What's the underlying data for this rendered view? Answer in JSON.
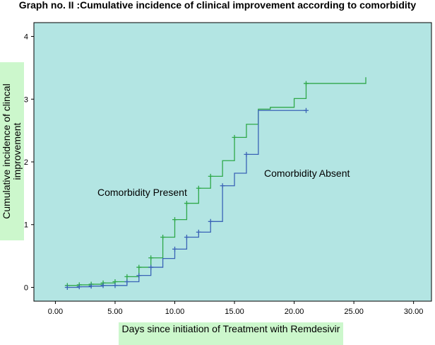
{
  "chart_data": {
    "type": "line",
    "step": true,
    "title": "Graph no. II :Cumulative incidence of clinical improvement according to comorbidity",
    "xlabel": "Days since initiation of Treatment with Remdesivir",
    "ylabel": "Cumulative incidence of clincal improvement",
    "xlim": [
      -1.8,
      31.5
    ],
    "ylim": [
      -0.22,
      4.22
    ],
    "x_ticks": [
      0,
      5,
      10,
      15,
      20,
      25,
      30
    ],
    "x_tick_labels": [
      "0.00",
      "5.00",
      "10.00",
      "15.00",
      "20.00",
      "25.00",
      "30.00"
    ],
    "y_ticks": [
      0,
      1,
      2,
      3,
      4
    ],
    "y_tick_labels": [
      "0",
      "1",
      "2",
      "3",
      "4"
    ],
    "grid": false,
    "plot_background": "#b3e5e3",
    "series": [
      {
        "name": "Comorbidity Present",
        "color": "#2fa84a",
        "x": [
          1,
          2,
          3,
          4,
          5,
          6,
          7,
          8,
          9,
          10,
          11,
          12,
          13,
          14,
          15,
          16,
          17,
          18,
          20,
          21,
          26
        ],
        "y": [
          0.03,
          0.04,
          0.05,
          0.07,
          0.09,
          0.17,
          0.32,
          0.47,
          0.8,
          1.08,
          1.34,
          1.58,
          1.77,
          2.02,
          2.39,
          2.6,
          2.84,
          2.87,
          3.01,
          3.25,
          3.35
        ],
        "censored_x": [
          1,
          2,
          3,
          4,
          5,
          6,
          7,
          8,
          9,
          10,
          11,
          12,
          13,
          15,
          21
        ]
      },
      {
        "name": "Comorbidity Absent",
        "color": "#3a63b6",
        "x": [
          1,
          2,
          3,
          4,
          5,
          6,
          7,
          8,
          9,
          10,
          11,
          12,
          13,
          14,
          15,
          16,
          17,
          21
        ],
        "y": [
          0.0,
          0.01,
          0.02,
          0.03,
          0.03,
          0.09,
          0.19,
          0.32,
          0.46,
          0.61,
          0.8,
          0.88,
          1.05,
          1.62,
          1.82,
          2.12,
          2.82,
          2.82
        ],
        "censored_x": [
          1,
          2,
          3,
          4,
          5,
          6,
          7,
          8,
          10,
          11,
          12,
          13,
          14,
          16,
          21
        ]
      }
    ]
  }
}
